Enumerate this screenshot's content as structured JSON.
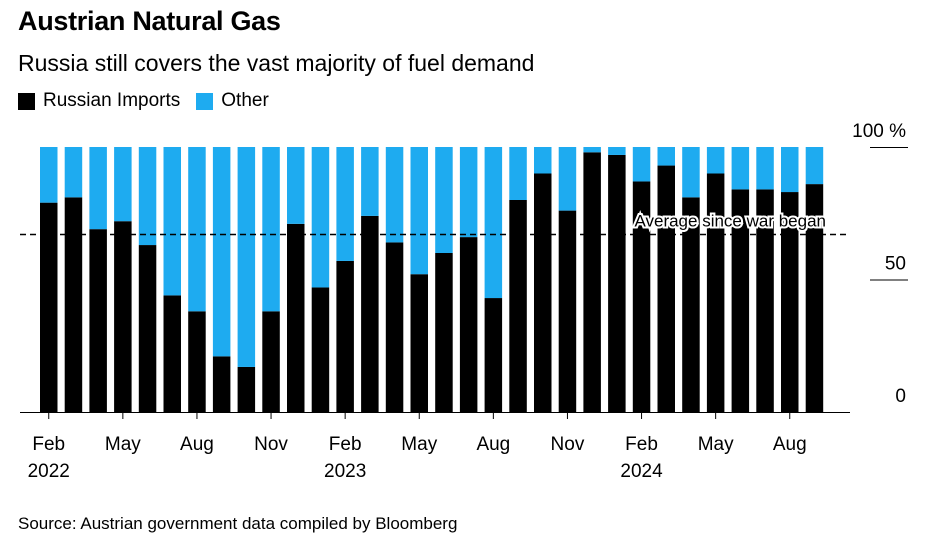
{
  "header": {
    "title": "Austrian Natural Gas",
    "subtitle": "Russia still covers the vast majority of fuel demand"
  },
  "legend": [
    {
      "label": "Russian Imports",
      "color": "#000000"
    },
    {
      "label": "Other",
      "color": "#1eabf0"
    }
  ],
  "footer": {
    "source": "Source: Austrian government data compiled by Bloomberg"
  },
  "chart_data": {
    "type": "bar",
    "stacked": true,
    "title": "Austrian Natural Gas",
    "subtitle": "Russia still covers the vast majority of fuel demand",
    "categories": [
      "2022-02",
      "2022-03",
      "2022-04",
      "2022-05",
      "2022-06",
      "2022-07",
      "2022-08",
      "2022-09",
      "2022-10",
      "2022-11",
      "2022-12",
      "2023-01",
      "2023-02",
      "2023-03",
      "2023-04",
      "2023-05",
      "2023-06",
      "2023-07",
      "2023-08",
      "2023-09",
      "2023-10",
      "2023-11",
      "2023-12",
      "2024-01",
      "2024-02",
      "2024-03",
      "2024-04",
      "2024-05",
      "2024-06",
      "2024-07",
      "2024-08",
      "2024-09"
    ],
    "series": [
      {
        "name": "Russian Imports",
        "color": "#000000",
        "values": [
          79,
          81,
          69,
          72,
          63,
          44,
          38,
          21,
          17,
          38,
          71,
          47,
          57,
          74,
          64,
          52,
          60,
          66,
          43,
          80,
          90,
          76,
          98,
          97,
          87,
          93,
          81,
          90,
          84,
          84,
          83,
          86
        ]
      },
      {
        "name": "Other",
        "color": "#1eabf0",
        "values": [
          21,
          19,
          31,
          28,
          37,
          56,
          62,
          79,
          83,
          62,
          29,
          53,
          43,
          26,
          36,
          48,
          40,
          34,
          57,
          20,
          10,
          24,
          2,
          3,
          13,
          7,
          19,
          10,
          16,
          16,
          17,
          14
        ]
      }
    ],
    "reference_line": {
      "value": 67,
      "label": "Average since war began",
      "style": "dashed"
    },
    "x_tick_labels": [
      {
        "category": "2022-02",
        "label": "Feb",
        "year": "2022"
      },
      {
        "category": "2022-05",
        "label": "May",
        "year": ""
      },
      {
        "category": "2022-08",
        "label": "Aug",
        "year": ""
      },
      {
        "category": "2022-11",
        "label": "Nov",
        "year": ""
      },
      {
        "category": "2023-02",
        "label": "Feb",
        "year": "2023"
      },
      {
        "category": "2023-05",
        "label": "May",
        "year": ""
      },
      {
        "category": "2023-08",
        "label": "Aug",
        "year": ""
      },
      {
        "category": "2023-11",
        "label": "Nov",
        "year": ""
      },
      {
        "category": "2024-02",
        "label": "Feb",
        "year": "2024"
      },
      {
        "category": "2024-05",
        "label": "May",
        "year": ""
      },
      {
        "category": "2024-08",
        "label": "Aug",
        "year": ""
      }
    ],
    "y_ticks": [
      {
        "value": 100,
        "label": "100 %"
      },
      {
        "value": 50,
        "label": "50"
      },
      {
        "value": 0,
        "label": "0"
      }
    ],
    "ylim": [
      0,
      100
    ],
    "y_axis_position": "right",
    "grid": false,
    "legend_position": "top-left"
  }
}
